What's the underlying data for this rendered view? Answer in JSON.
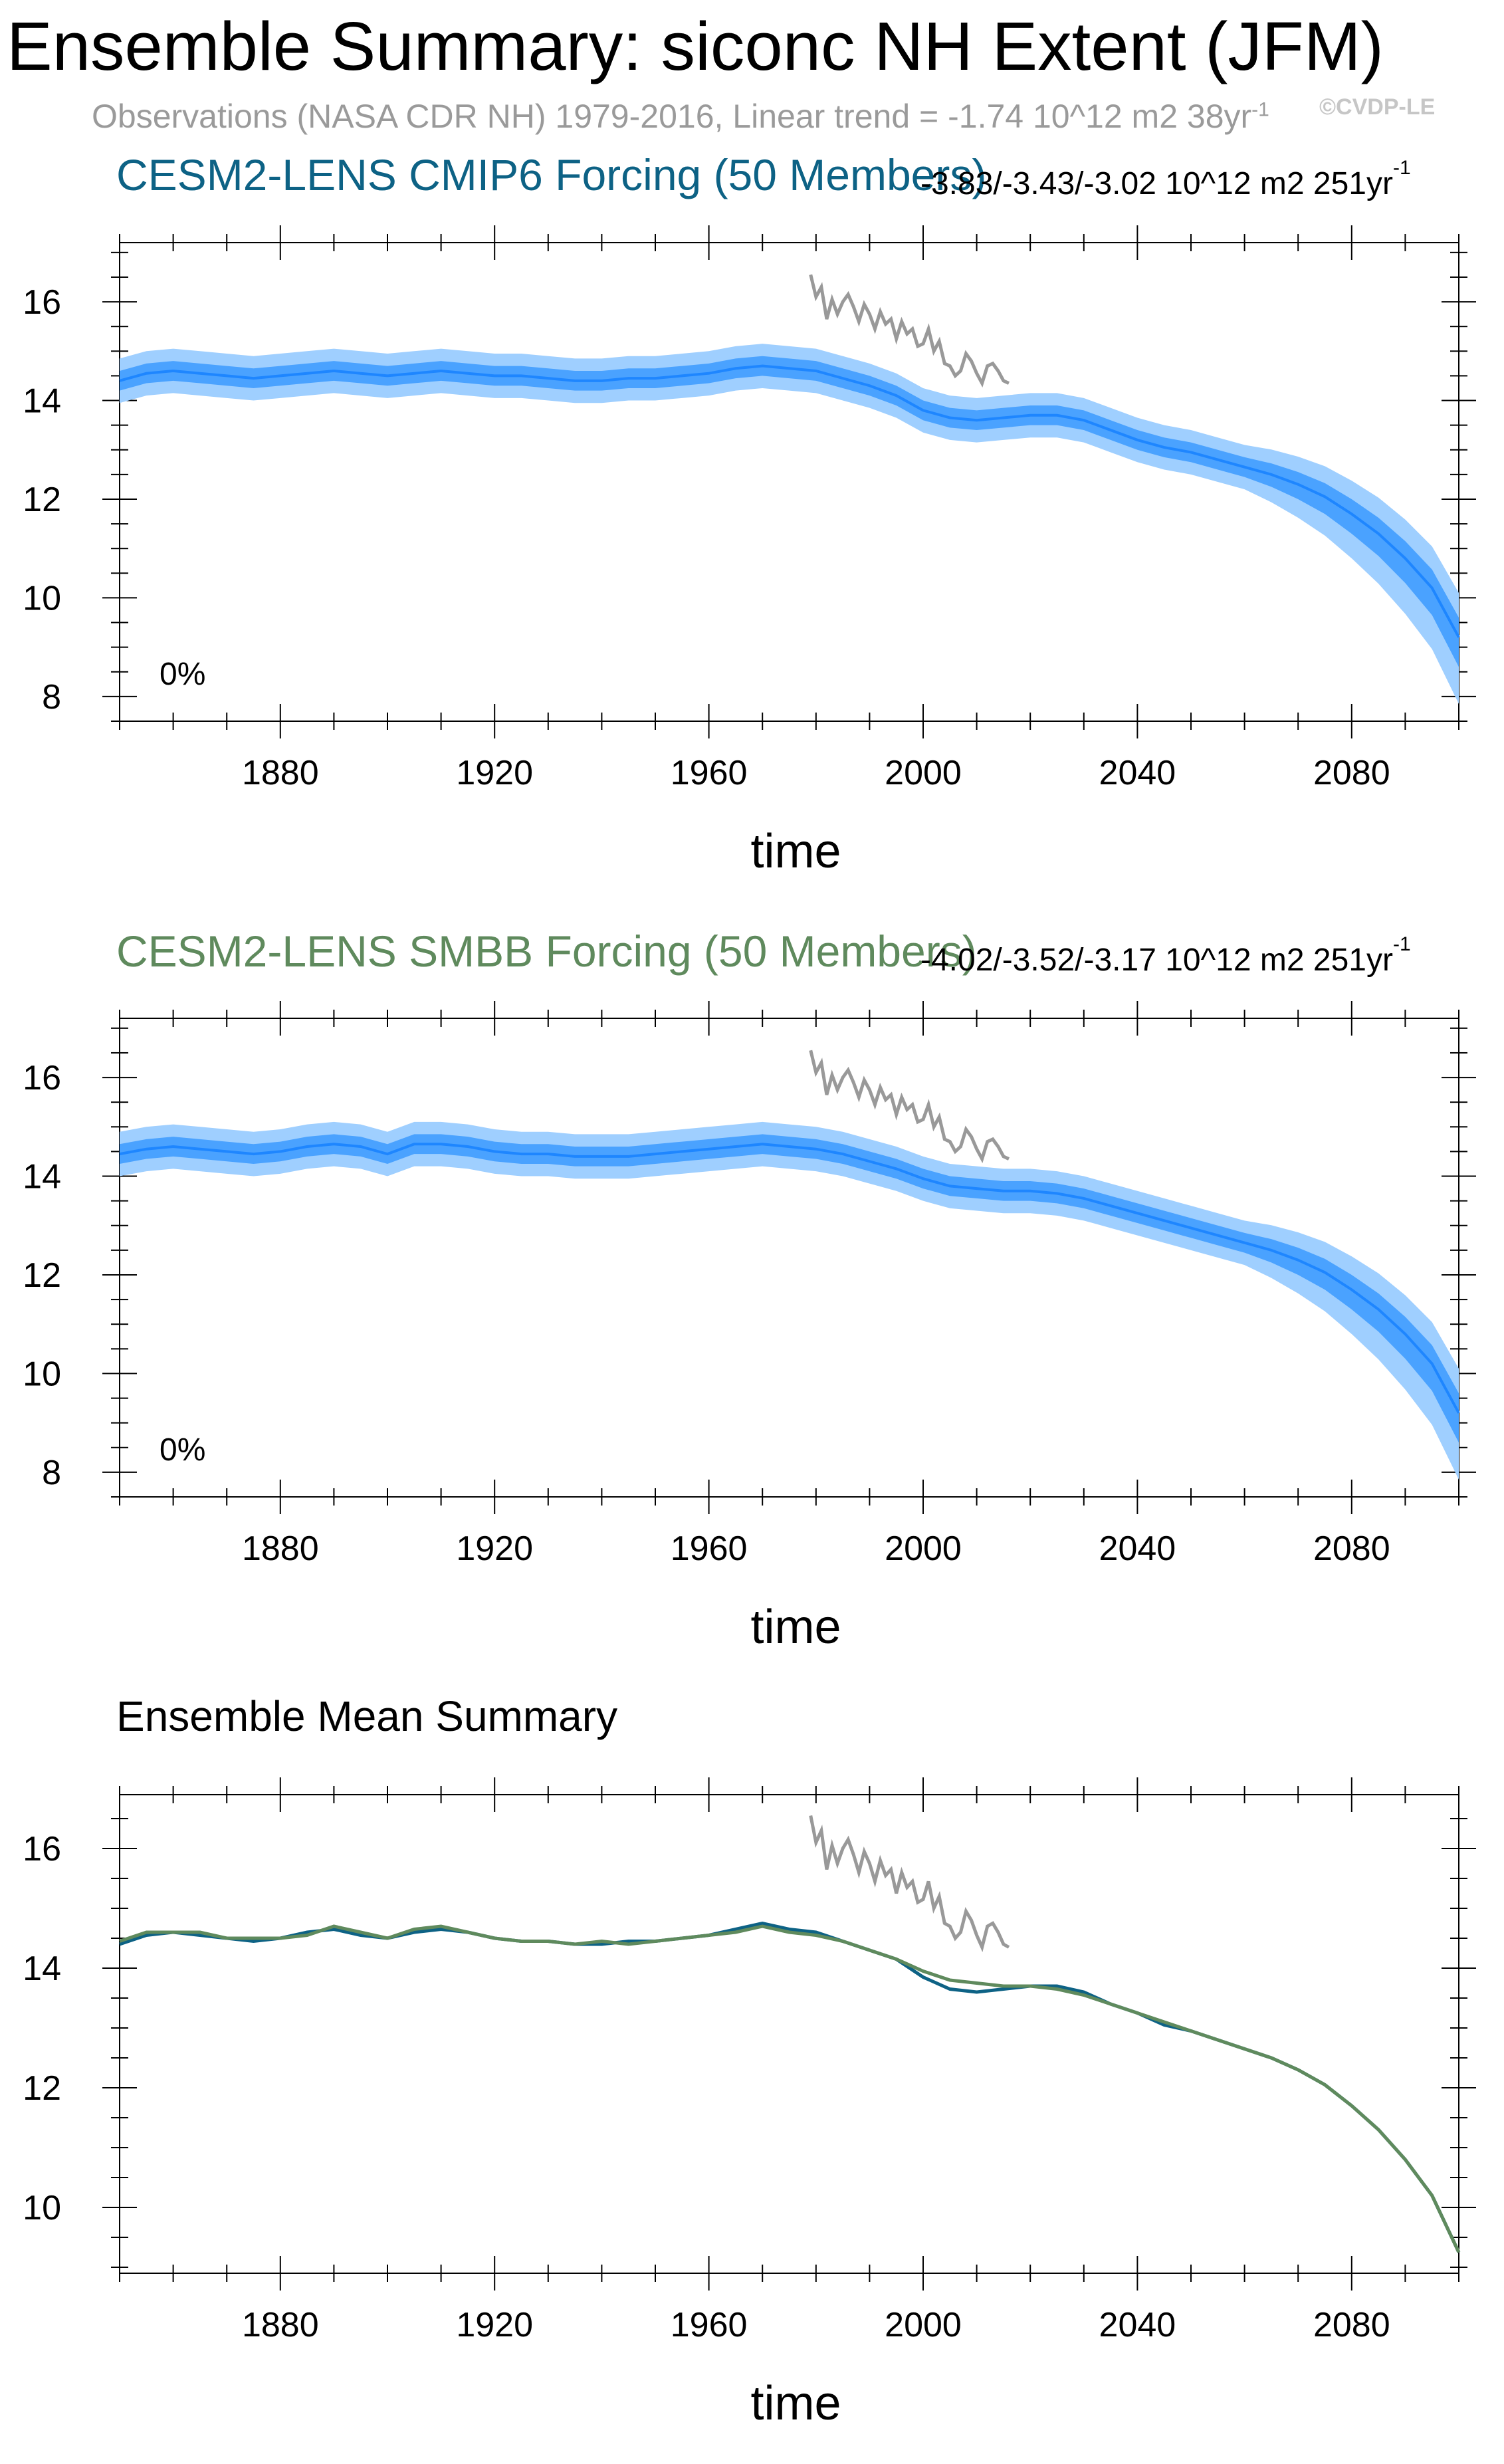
{
  "title": "Ensemble Summary: siconc NH Extent (JFM)",
  "subtitle": "Observations (NASA CDR NH) 1979-2016, Linear trend = -1.74 10^12 m2 38yr",
  "subtitle_sup": "-1",
  "watermark": "©CVDP-LE",
  "colors": {
    "ens_band_outer": "#9fcfff",
    "ens_band_inner": "#4aa2ff",
    "ens_mean": "#1e86ff",
    "obs": "#999999",
    "cmip6": "#0d6285",
    "smbb": "#5f8a5d"
  },
  "panels": [
    {
      "title": "CESM2-LENS CMIP6 Forcing (50 Members)",
      "title_color": "#0d6285",
      "trend": "-3.83/-3.43/-3.02 10^12 m2 251yr",
      "trend_sup": "-1",
      "percent_label": "0%",
      "xlabel": "time"
    },
    {
      "title": "CESM2-LENS SMBB Forcing (50 Members)",
      "title_color": "#5f8a5d",
      "trend": "-4.02/-3.52/-3.17 10^12 m2 251yr",
      "trend_sup": "-1",
      "percent_label": "0%",
      "xlabel": "time"
    },
    {
      "title": "Ensemble Mean Summary",
      "xlabel": "time"
    }
  ],
  "chart_data": [
    {
      "type": "area",
      "title": "CESM2-LENS CMIP6 Forcing (50 Members)",
      "xlabel": "time",
      "ylabel": "",
      "xlim": [
        1850,
        2100
      ],
      "ylim": [
        7.5,
        17.2
      ],
      "xticks": [
        1880,
        1920,
        1960,
        2000,
        2040,
        2080
      ],
      "yticks": [
        8,
        10,
        12,
        14,
        16
      ],
      "mean": {
        "x": [
          1850,
          1855,
          1860,
          1865,
          1870,
          1875,
          1880,
          1885,
          1890,
          1895,
          1900,
          1905,
          1910,
          1915,
          1920,
          1925,
          1930,
          1935,
          1940,
          1945,
          1950,
          1955,
          1960,
          1965,
          1970,
          1975,
          1980,
          1985,
          1990,
          1995,
          2000,
          2005,
          2010,
          2015,
          2020,
          2025,
          2030,
          2035,
          2040,
          2045,
          2050,
          2055,
          2060,
          2065,
          2070,
          2075,
          2080,
          2085,
          2090,
          2095,
          2100
        ],
        "values": [
          14.4,
          14.55,
          14.6,
          14.55,
          14.5,
          14.45,
          14.5,
          14.55,
          14.6,
          14.55,
          14.5,
          14.55,
          14.6,
          14.55,
          14.5,
          14.5,
          14.45,
          14.4,
          14.4,
          14.45,
          14.45,
          14.5,
          14.55,
          14.65,
          14.7,
          14.65,
          14.6,
          14.45,
          14.3,
          14.1,
          13.8,
          13.65,
          13.6,
          13.65,
          13.7,
          13.7,
          13.6,
          13.4,
          13.2,
          13.05,
          12.95,
          12.8,
          12.65,
          12.5,
          12.3,
          12.05,
          11.7,
          11.3,
          10.8,
          10.2,
          9.2
        ]
      },
      "spread_inner": 0.2,
      "spread_outer": 0.45,
      "obs": {
        "x": [
          1979,
          1980,
          1981,
          1982,
          1983,
          1984,
          1985,
          1986,
          1987,
          1988,
          1989,
          1990,
          1991,
          1992,
          1993,
          1994,
          1995,
          1996,
          1997,
          1998,
          1999,
          2000,
          2001,
          2002,
          2003,
          2004,
          2005,
          2006,
          2007,
          2008,
          2009,
          2010,
          2011,
          2012,
          2013,
          2014,
          2015,
          2016
        ],
        "values": [
          16.55,
          16.1,
          16.3,
          15.65,
          16.05,
          15.75,
          16.0,
          16.15,
          15.9,
          15.6,
          15.95,
          15.75,
          15.45,
          15.8,
          15.55,
          15.65,
          15.25,
          15.6,
          15.35,
          15.45,
          15.1,
          15.15,
          15.45,
          15.0,
          15.2,
          14.75,
          14.7,
          14.5,
          14.6,
          14.95,
          14.8,
          14.55,
          14.35,
          14.7,
          14.75,
          14.6,
          14.4,
          14.35
        ]
      }
    },
    {
      "type": "area",
      "title": "CESM2-LENS SMBB Forcing (50 Members)",
      "xlabel": "time",
      "ylabel": "",
      "xlim": [
        1850,
        2100
      ],
      "ylim": [
        7.5,
        17.2
      ],
      "xticks": [
        1880,
        1920,
        1960,
        2000,
        2040,
        2080
      ],
      "yticks": [
        8,
        10,
        12,
        14,
        16
      ],
      "mean": {
        "x": [
          1850,
          1855,
          1860,
          1865,
          1870,
          1875,
          1880,
          1885,
          1890,
          1895,
          1900,
          1905,
          1910,
          1915,
          1920,
          1925,
          1930,
          1935,
          1940,
          1945,
          1950,
          1955,
          1960,
          1965,
          1970,
          1975,
          1980,
          1985,
          1990,
          1995,
          2000,
          2005,
          2010,
          2015,
          2020,
          2025,
          2030,
          2035,
          2040,
          2045,
          2050,
          2055,
          2060,
          2065,
          2070,
          2075,
          2080,
          2085,
          2090,
          2095,
          2100
        ],
        "values": [
          14.45,
          14.55,
          14.6,
          14.55,
          14.5,
          14.45,
          14.5,
          14.6,
          14.65,
          14.6,
          14.45,
          14.65,
          14.65,
          14.6,
          14.5,
          14.45,
          14.45,
          14.4,
          14.4,
          14.4,
          14.45,
          14.5,
          14.55,
          14.6,
          14.65,
          14.6,
          14.55,
          14.45,
          14.3,
          14.15,
          13.95,
          13.8,
          13.75,
          13.7,
          13.7,
          13.65,
          13.55,
          13.4,
          13.25,
          13.1,
          12.95,
          12.8,
          12.65,
          12.5,
          12.3,
          12.05,
          11.7,
          11.3,
          10.8,
          10.2,
          9.2
        ]
      },
      "spread_inner": 0.2,
      "spread_outer": 0.45,
      "obs": {
        "x": [
          1979,
          1980,
          1981,
          1982,
          1983,
          1984,
          1985,
          1986,
          1987,
          1988,
          1989,
          1990,
          1991,
          1992,
          1993,
          1994,
          1995,
          1996,
          1997,
          1998,
          1999,
          2000,
          2001,
          2002,
          2003,
          2004,
          2005,
          2006,
          2007,
          2008,
          2009,
          2010,
          2011,
          2012,
          2013,
          2014,
          2015,
          2016
        ],
        "values": [
          16.55,
          16.1,
          16.3,
          15.65,
          16.05,
          15.75,
          16.0,
          16.15,
          15.9,
          15.6,
          15.95,
          15.75,
          15.45,
          15.8,
          15.55,
          15.65,
          15.25,
          15.6,
          15.35,
          15.45,
          15.1,
          15.15,
          15.45,
          15.0,
          15.2,
          14.75,
          14.7,
          14.5,
          14.6,
          14.95,
          14.8,
          14.55,
          14.35,
          14.7,
          14.75,
          14.6,
          14.4,
          14.35
        ]
      }
    },
    {
      "type": "line",
      "title": "Ensemble Mean Summary",
      "xlabel": "time",
      "ylabel": "",
      "xlim": [
        1850,
        2100
      ],
      "ylim": [
        8.9,
        16.9
      ],
      "xticks": [
        1880,
        1920,
        1960,
        2000,
        2040,
        2080
      ],
      "yticks": [
        10,
        12,
        14,
        16
      ],
      "series": [
        {
          "color": "#0d6285",
          "x": [
            1850,
            1855,
            1860,
            1865,
            1870,
            1875,
            1880,
            1885,
            1890,
            1895,
            1900,
            1905,
            1910,
            1915,
            1920,
            1925,
            1930,
            1935,
            1940,
            1945,
            1950,
            1955,
            1960,
            1965,
            1970,
            1975,
            1980,
            1985,
            1990,
            1995,
            2000,
            2005,
            2010,
            2015,
            2020,
            2025,
            2030,
            2035,
            2040,
            2045,
            2050,
            2055,
            2060,
            2065,
            2070,
            2075,
            2080,
            2085,
            2090,
            2095,
            2100
          ],
          "values": [
            14.4,
            14.55,
            14.6,
            14.55,
            14.5,
            14.45,
            14.5,
            14.6,
            14.65,
            14.55,
            14.5,
            14.6,
            14.65,
            14.6,
            14.5,
            14.45,
            14.45,
            14.4,
            14.4,
            14.45,
            14.45,
            14.5,
            14.55,
            14.65,
            14.75,
            14.65,
            14.6,
            14.45,
            14.3,
            14.15,
            13.85,
            13.65,
            13.6,
            13.65,
            13.7,
            13.7,
            13.6,
            13.4,
            13.25,
            13.05,
            12.95,
            12.8,
            12.65,
            12.5,
            12.3,
            12.05,
            11.7,
            11.3,
            10.8,
            10.2,
            9.25
          ]
        },
        {
          "color": "#5f8a5d",
          "x": [
            1850,
            1855,
            1860,
            1865,
            1870,
            1875,
            1880,
            1885,
            1890,
            1895,
            1900,
            1905,
            1910,
            1915,
            1920,
            1925,
            1930,
            1935,
            1940,
            1945,
            1950,
            1955,
            1960,
            1965,
            1970,
            1975,
            1980,
            1985,
            1990,
            1995,
            2000,
            2005,
            2010,
            2015,
            2020,
            2025,
            2030,
            2035,
            2040,
            2045,
            2050,
            2055,
            2060,
            2065,
            2070,
            2075,
            2080,
            2085,
            2090,
            2095,
            2100
          ],
          "values": [
            14.45,
            14.6,
            14.6,
            14.6,
            14.5,
            14.5,
            14.5,
            14.55,
            14.7,
            14.6,
            14.5,
            14.65,
            14.7,
            14.6,
            14.5,
            14.45,
            14.45,
            14.4,
            14.45,
            14.4,
            14.45,
            14.5,
            14.55,
            14.6,
            14.7,
            14.6,
            14.55,
            14.45,
            14.3,
            14.15,
            13.95,
            13.8,
            13.75,
            13.7,
            13.7,
            13.65,
            13.55,
            13.4,
            13.25,
            13.1,
            12.95,
            12.8,
            12.65,
            12.5,
            12.3,
            12.05,
            11.7,
            11.3,
            10.8,
            10.2,
            9.25
          ]
        }
      ],
      "obs": {
        "x": [
          1979,
          1980,
          1981,
          1982,
          1983,
          1984,
          1985,
          1986,
          1987,
          1988,
          1989,
          1990,
          1991,
          1992,
          1993,
          1994,
          1995,
          1996,
          1997,
          1998,
          1999,
          2000,
          2001,
          2002,
          2003,
          2004,
          2005,
          2006,
          2007,
          2008,
          2009,
          2010,
          2011,
          2012,
          2013,
          2014,
          2015,
          2016
        ],
        "values": [
          16.55,
          16.1,
          16.3,
          15.65,
          16.05,
          15.75,
          16.0,
          16.15,
          15.9,
          15.6,
          15.95,
          15.75,
          15.45,
          15.8,
          15.55,
          15.65,
          15.25,
          15.6,
          15.35,
          15.45,
          15.1,
          15.15,
          15.45,
          15.0,
          15.2,
          14.75,
          14.7,
          14.5,
          14.6,
          14.95,
          14.8,
          14.55,
          14.35,
          14.7,
          14.75,
          14.6,
          14.4,
          14.35
        ]
      }
    }
  ]
}
